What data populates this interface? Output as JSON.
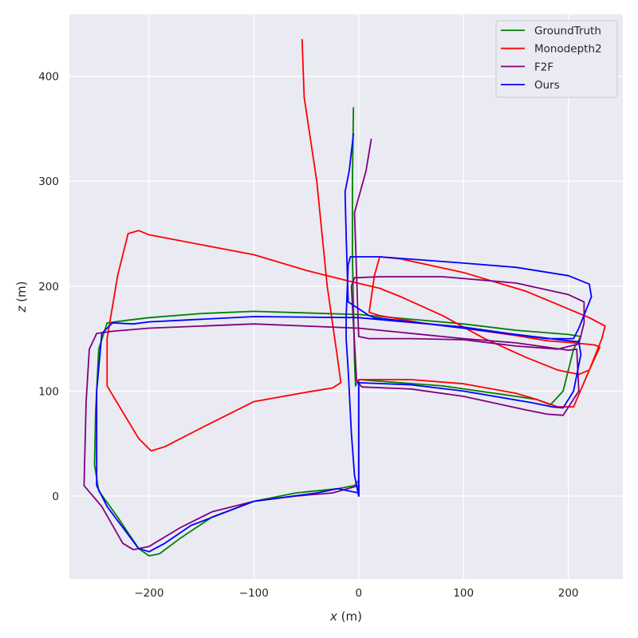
{
  "chart_data": {
    "type": "line",
    "title": "",
    "xlabel": "x (m)",
    "ylabel": "z (m)",
    "xlim": [
      -276,
      252
    ],
    "ylim": [
      -79,
      459
    ],
    "x_ticks": [
      -200,
      -100,
      0,
      100,
      200
    ],
    "x_tick_labels": [
      "−200",
      "−100",
      "0",
      "100",
      "200"
    ],
    "y_ticks": [
      0,
      100,
      200,
      300,
      400
    ],
    "y_tick_labels": [
      "0",
      "100",
      "200",
      "300",
      "400"
    ],
    "grid": true,
    "legend_position": "top-right",
    "series": [
      {
        "name": "GroundTruth",
        "color": "#008000",
        "points": [
          [
            0,
            0
          ],
          [
            0,
            15
          ],
          [
            -4,
            10
          ],
          [
            -20,
            7
          ],
          [
            -60,
            3
          ],
          [
            -100,
            -5
          ],
          [
            -140,
            -20
          ],
          [
            -170,
            -40
          ],
          [
            -190,
            -55
          ],
          [
            -200,
            -57
          ],
          [
            -210,
            -50
          ],
          [
            -230,
            -20
          ],
          [
            -248,
            5
          ],
          [
            -252,
            30
          ],
          [
            -251,
            80
          ],
          [
            -248,
            140
          ],
          [
            -240,
            165
          ],
          [
            -225,
            167
          ],
          [
            -200,
            170
          ],
          [
            -150,
            174
          ],
          [
            -100,
            176
          ],
          [
            0,
            173
          ],
          [
            100,
            164
          ],
          [
            150,
            158
          ],
          [
            200,
            154
          ],
          [
            212,
            152
          ],
          [
            205,
            140
          ],
          [
            195,
            100
          ],
          [
            183,
            87
          ],
          [
            170,
            92
          ],
          [
            150,
            95
          ],
          [
            80,
            105
          ],
          [
            0,
            111
          ],
          [
            -3,
            105
          ],
          [
            -4,
            130
          ],
          [
            -5,
            180
          ],
          [
            -6,
            230
          ],
          [
            -6,
            300
          ],
          [
            -5,
            370
          ]
        ]
      },
      {
        "name": "Monodepth2",
        "color": "#ff0000",
        "points": [
          [
            -54,
            435
          ],
          [
            -52,
            380
          ],
          [
            -40,
            300
          ],
          [
            -30,
            200
          ],
          [
            -20,
            130
          ],
          [
            -17,
            108
          ],
          [
            -25,
            103
          ],
          [
            -50,
            99
          ],
          [
            -100,
            90
          ],
          [
            -150,
            65
          ],
          [
            -185,
            47
          ],
          [
            -198,
            43
          ],
          [
            -210,
            55
          ],
          [
            -225,
            80
          ],
          [
            -240,
            105
          ],
          [
            -240,
            150
          ],
          [
            -230,
            210
          ],
          [
            -220,
            250
          ],
          [
            -210,
            253
          ],
          [
            -200,
            249
          ],
          [
            -100,
            230
          ],
          [
            -50,
            215
          ],
          [
            -10,
            205
          ],
          [
            20,
            198
          ],
          [
            40,
            190
          ],
          [
            80,
            172
          ],
          [
            120,
            150
          ],
          [
            160,
            132
          ],
          [
            190,
            120
          ],
          [
            210,
            116
          ],
          [
            220,
            120
          ],
          [
            230,
            142
          ],
          [
            225,
            144
          ],
          [
            205,
            146
          ],
          [
            180,
            148
          ],
          [
            150,
            153
          ],
          [
            100,
            160
          ],
          [
            60,
            165
          ],
          [
            20,
            172
          ],
          [
            10,
            175
          ],
          [
            15,
            210
          ],
          [
            20,
            228
          ],
          [
            40,
            226
          ],
          [
            100,
            213
          ],
          [
            160,
            195
          ],
          [
            220,
            170
          ],
          [
            235,
            162
          ],
          [
            232,
            150
          ],
          [
            220,
            120
          ],
          [
            205,
            85
          ],
          [
            190,
            85
          ],
          [
            170,
            92
          ],
          [
            150,
            98
          ],
          [
            100,
            107
          ],
          [
            50,
            111
          ],
          [
            0,
            111
          ],
          [
            0,
            0
          ]
        ]
      },
      {
        "name": "F2F",
        "color": "#800080",
        "points": [
          [
            0,
            0
          ],
          [
            0,
            10
          ],
          [
            -25,
            3
          ],
          [
            -60,
            0
          ],
          [
            -100,
            -5
          ],
          [
            -140,
            -15
          ],
          [
            -170,
            -30
          ],
          [
            -200,
            -48
          ],
          [
            -215,
            -51
          ],
          [
            -225,
            -45
          ],
          [
            -245,
            -10
          ],
          [
            -262,
            10
          ],
          [
            -260,
            90
          ],
          [
            -257,
            140
          ],
          [
            -250,
            155
          ],
          [
            -235,
            157
          ],
          [
            -200,
            160
          ],
          [
            -100,
            164
          ],
          [
            0,
            160
          ],
          [
            100,
            150
          ],
          [
            150,
            146
          ],
          [
            200,
            139
          ],
          [
            208,
            140
          ],
          [
            210,
            100
          ],
          [
            195,
            77
          ],
          [
            180,
            78
          ],
          [
            160,
            82
          ],
          [
            100,
            95
          ],
          [
            50,
            102
          ],
          [
            3,
            104
          ],
          [
            -2,
            110
          ],
          [
            -7,
            200
          ],
          [
            -4,
            208
          ],
          [
            20,
            209
          ],
          [
            80,
            209
          ],
          [
            150,
            203
          ],
          [
            200,
            192
          ],
          [
            215,
            185
          ],
          [
            215,
            165
          ],
          [
            210,
            145
          ],
          [
            190,
            140
          ],
          [
            150,
            143
          ],
          [
            100,
            149
          ],
          [
            50,
            150
          ],
          [
            10,
            150
          ],
          [
            0,
            152
          ],
          [
            -4,
            270
          ],
          [
            7,
            310
          ],
          [
            12,
            340
          ]
        ]
      },
      {
        "name": "Ours",
        "color": "#0000ff",
        "points": [
          [
            0,
            0
          ],
          [
            0,
            3
          ],
          [
            -20,
            7
          ],
          [
            -40,
            3
          ],
          [
            -100,
            -5
          ],
          [
            -160,
            -28
          ],
          [
            -185,
            -45
          ],
          [
            -200,
            -53
          ],
          [
            -210,
            -50
          ],
          [
            -240,
            -10
          ],
          [
            -250,
            10
          ],
          [
            -250,
            100
          ],
          [
            -245,
            155
          ],
          [
            -235,
            165
          ],
          [
            -215,
            164
          ],
          [
            -200,
            166
          ],
          [
            -100,
            171
          ],
          [
            0,
            170
          ],
          [
            100,
            161
          ],
          [
            150,
            154
          ],
          [
            200,
            148
          ],
          [
            210,
            147
          ],
          [
            212,
            135
          ],
          [
            205,
            100
          ],
          [
            195,
            84
          ],
          [
            185,
            85
          ],
          [
            165,
            89
          ],
          [
            100,
            100
          ],
          [
            50,
            106
          ],
          [
            0,
            108
          ],
          [
            0,
            0
          ],
          [
            -4,
            20
          ],
          [
            -7,
            60
          ],
          [
            -10,
            120
          ],
          [
            -12,
            150
          ],
          [
            -12,
            170
          ],
          [
            -10,
            220
          ],
          [
            -8,
            228
          ],
          [
            20,
            228
          ],
          [
            100,
            222
          ],
          [
            150,
            218
          ],
          [
            200,
            210
          ],
          [
            220,
            202
          ],
          [
            222,
            190
          ],
          [
            210,
            160
          ],
          [
            205,
            150
          ],
          [
            180,
            150
          ],
          [
            100,
            160
          ],
          [
            50,
            166
          ],
          [
            15,
            170
          ],
          [
            10,
            172
          ],
          [
            -10,
            185
          ],
          [
            -12,
            250
          ],
          [
            -13,
            290
          ],
          [
            -9,
            310
          ],
          [
            -5,
            345
          ]
        ]
      }
    ]
  }
}
